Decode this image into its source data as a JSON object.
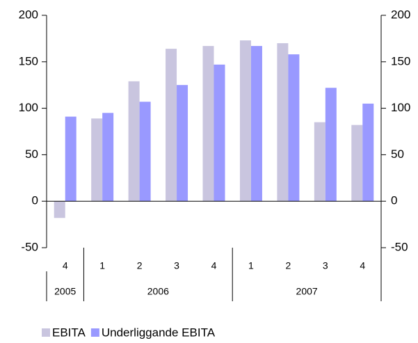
{
  "chart_data": {
    "type": "bar",
    "categories": [
      "4",
      "1",
      "2",
      "3",
      "4",
      "1",
      "2",
      "3",
      "4"
    ],
    "years": [
      "2005",
      "2006",
      null,
      null,
      null,
      "2007",
      null,
      null,
      null
    ],
    "series": [
      {
        "name": "EBITA",
        "color": "#c9c5df",
        "values": [
          -18,
          89,
          129,
          164,
          167,
          173,
          170,
          85,
          82
        ]
      },
      {
        "name": "Underliggande EBITA",
        "color": "#9999ff",
        "values": [
          91,
          95,
          107,
          125,
          147,
          167,
          158,
          122,
          105
        ]
      }
    ],
    "ylim": [
      -50,
      200
    ],
    "yticks": [
      -50,
      0,
      50,
      100,
      150,
      200
    ],
    "y2lim": [
      -50,
      200
    ],
    "y2ticks": [
      -50,
      0,
      50,
      100,
      150,
      200
    ],
    "legend": "bottom-left"
  }
}
